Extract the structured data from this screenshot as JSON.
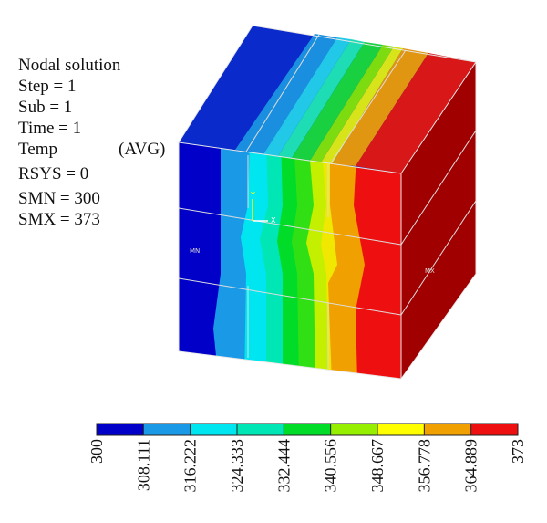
{
  "info": {
    "title": "Nodal solution",
    "step": "Step = 1",
    "sub": "Sub = 1",
    "time": "Time = 1",
    "temp": "Temp",
    "avg": "(AVG)",
    "rsys": "RSYS = 0",
    "smn": "SMN = 300",
    "smx": "SMX = 373"
  },
  "markers": {
    "min": "MN",
    "max": "MX",
    "axis_y": "Y",
    "axis_x": "X"
  },
  "legend": {
    "ticks": [
      "300",
      "308.111",
      "316.222",
      "324.333",
      "332.444",
      "340.556",
      "348.667",
      "356.778",
      "364.889",
      "373"
    ],
    "colors": [
      "#0000c8",
      "#1a9ae6",
      "#00e6f0",
      "#00e6b4",
      "#00dc28",
      "#96ee00",
      "#ffff00",
      "#f0a000",
      "#ee1010"
    ]
  },
  "colors": {
    "top_face": [
      "#0a2acc",
      "#1a8fe0",
      "#22c8e8",
      "#1edcb4",
      "#18d040",
      "#7cdc10",
      "#d8e41a",
      "#e09610",
      "#d81818"
    ],
    "right_face": "#a00000"
  }
}
